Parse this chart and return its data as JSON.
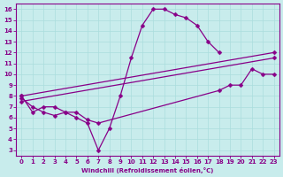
{
  "xlabel": "Windchill (Refroidissement éolien,°C)",
  "bg_color": "#c8ecec",
  "line_color": "#880088",
  "grid_color": "#aadddd",
  "x_ticks": [
    0,
    1,
    2,
    3,
    4,
    5,
    6,
    7,
    8,
    9,
    10,
    11,
    12,
    13,
    14,
    15,
    16,
    17,
    18,
    19,
    20,
    21,
    22,
    23
  ],
  "y_ticks": [
    3,
    4,
    5,
    6,
    7,
    8,
    9,
    10,
    11,
    12,
    13,
    14,
    15,
    16
  ],
  "xlim": [
    -0.5,
    23.5
  ],
  "ylim": [
    2.5,
    16.5
  ],
  "line1_x": [
    0,
    1,
    2,
    3,
    4,
    5,
    6,
    7,
    8,
    9,
    10,
    11,
    12,
    13,
    14,
    15,
    16,
    17,
    18
  ],
  "line1_y": [
    8.0,
    6.5,
    7.0,
    7.0,
    6.5,
    6.0,
    5.5,
    3.0,
    5.0,
    8.0,
    11.5,
    14.5,
    16.0,
    16.0,
    15.5,
    15.2,
    14.5,
    13.0,
    12.0
  ],
  "line2_x": [
    0,
    23
  ],
  "line2_y": [
    8.0,
    12.0
  ],
  "line3_x": [
    0,
    23
  ],
  "line3_y": [
    7.5,
    11.5
  ],
  "line4_x": [
    0,
    1,
    2,
    3,
    4,
    5,
    6,
    7,
    18,
    19,
    20,
    21,
    22,
    23
  ],
  "line4_y": [
    7.8,
    7.0,
    6.5,
    6.2,
    6.5,
    6.5,
    5.8,
    5.5,
    8.5,
    9.0,
    9.0,
    10.5,
    10.0,
    10.0
  ],
  "lw": 0.9,
  "markersize": 2.5
}
